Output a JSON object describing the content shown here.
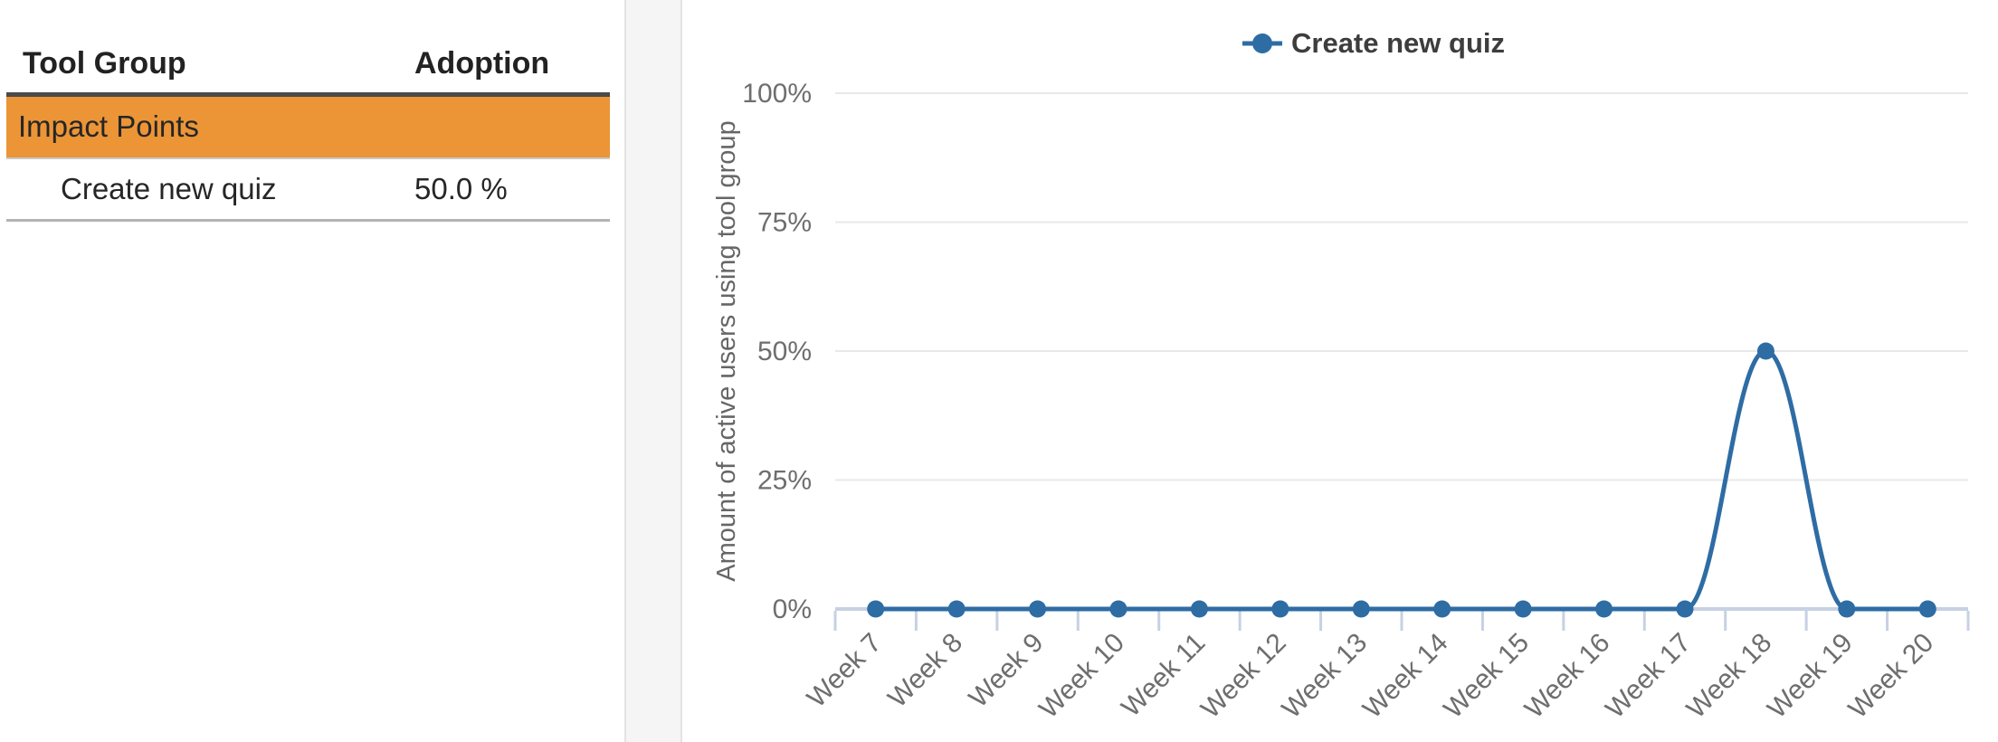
{
  "table": {
    "columns": [
      "Tool Group",
      "Adoption"
    ],
    "group_row": {
      "label": "Impact Points"
    },
    "rows": [
      {
        "tool": "Create new quiz",
        "adoption": "50.0 %"
      }
    ]
  },
  "chart": {
    "legend_label": "Create new quiz",
    "y_axis_title": "Amount of active users using tool group"
  },
  "chart_data": {
    "type": "line",
    "title": "",
    "categories": [
      "Week 7",
      "Week 8",
      "Week 9",
      "Week 10",
      "Week 11",
      "Week 12",
      "Week 13",
      "Week 14",
      "Week 15",
      "Week 16",
      "Week 17",
      "Week 18",
      "Week 19",
      "Week 20"
    ],
    "series": [
      {
        "name": "Create new quiz",
        "values": [
          0,
          0,
          0,
          0,
          0,
          0,
          0,
          0,
          0,
          0,
          0,
          50,
          0,
          0
        ]
      }
    ],
    "xlabel": "",
    "ylabel": "Amount of active users using tool group",
    "ylim": [
      0,
      100
    ],
    "yticks": [
      0,
      25,
      50,
      75,
      100
    ],
    "ytick_suffix": "%",
    "grid": true,
    "legend_position": "top-center",
    "smooth": true
  },
  "colors": {
    "series_blue": "#2e6ca4",
    "axis_lavender": "#c7d1e3",
    "gridline": "#e8e8e8",
    "tick_text": "#6e6e6e",
    "axis_title_text": "#666666",
    "legend_text": "#3d3d3d",
    "group_row_orange": "#eb9537",
    "header_border": "#4a4a4a",
    "row_border": "#c9c9c9",
    "bottom_border": "#b3b3b3"
  }
}
